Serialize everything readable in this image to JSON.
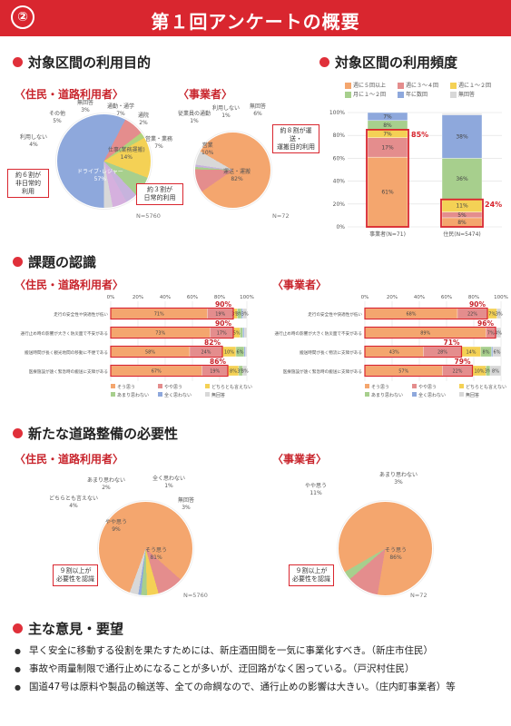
{
  "header": {
    "number": "②",
    "title": "第１回アンケートの概要"
  },
  "section_purpose": {
    "title": "対象区間の利用目的",
    "residents": {
      "subtitle": "〈住民・道路利用者〉",
      "n": "N=5760",
      "slices": [
        {
          "label": "ドライブ･レジャー",
          "pct": "57%",
          "value": 57,
          "color": "#8ea8dc"
        },
        {
          "label": "通勤・通学",
          "pct": "7%",
          "value": 7,
          "color": "#e48d8d"
        },
        {
          "label": "通院",
          "pct": "2%",
          "value": 2,
          "color": "#b2d27c"
        },
        {
          "label": "仕事(業務運搬)",
          "pct": "14%",
          "value": 14,
          "color": "#f4d155"
        },
        {
          "label": "営業・業務",
          "pct": "7%",
          "value": 7,
          "color": "#a7cf8d"
        },
        {
          "label": "利用しない",
          "pct": "4%",
          "value": 4,
          "color": "#c7b3dd"
        },
        {
          "label": "その他",
          "pct": "5%",
          "value": 5,
          "color": "#d5b0de"
        },
        {
          "label": "無回答",
          "pct": "3%",
          "value": 3,
          "color": "#d8d8d8"
        }
      ],
      "callout_a": "約６割が\n非日常的\n利用",
      "callout_b": "約３割が\n日常的利用"
    },
    "business": {
      "subtitle": "〈事業者〉",
      "n": "N=72",
      "slices": [
        {
          "label": "運送・運搬",
          "pct": "82%",
          "value": 82,
          "color": "#f4a66e"
        },
        {
          "label": "営業",
          "pct": "10%",
          "value": 10,
          "color": "#e48d8d"
        },
        {
          "label": "従業員の通勤",
          "pct": "1%",
          "value": 1,
          "color": "#a7cf8d"
        },
        {
          "label": "利用しない",
          "pct": "1%",
          "value": 1,
          "color": "#c7b3dd"
        },
        {
          "label": "無回答",
          "pct": "6%",
          "value": 6,
          "color": "#d8d8d8"
        }
      ],
      "callout": "約８割が運送・\n運搬目的利用"
    }
  },
  "section_frequency": {
    "title": "対象区間の利用頻度",
    "legend": [
      "週に５回以上",
      "週に３～４回",
      "週に１～２回",
      "月に１～２回",
      "年に数回",
      "無回答"
    ],
    "chart_data": {
      "type": "bar",
      "stacked": true,
      "categories": [
        "事業者(N=71)",
        "住民(N=5474)"
      ],
      "ylim": [
        0,
        100
      ],
      "yticks": [
        "0%",
        "20%",
        "40%",
        "60%",
        "80%",
        "100%"
      ],
      "series": [
        {
          "name": "週に５回以上",
          "values": [
            61,
            8
          ],
          "color": "#f4a66e"
        },
        {
          "name": "週に３～４回",
          "values": [
            17,
            5
          ],
          "color": "#e48d8d"
        },
        {
          "name": "週に１～２回",
          "values": [
            7,
            11
          ],
          "color": "#f4d155"
        },
        {
          "name": "月に１～２回",
          "values": [
            8,
            36
          ],
          "color": "#a7cf8d"
        },
        {
          "name": "年に数回",
          "values": [
            7,
            38
          ],
          "color": "#8ea8dc"
        },
        {
          "name": "無回答",
          "values": [
            0,
            1
          ],
          "color": "#d8d8d8"
        }
      ],
      "highlights": [
        "85%",
        "24%"
      ]
    }
  },
  "section_issue": {
    "title": "課題の認識",
    "axis": [
      "0%",
      "20%",
      "40%",
      "60%",
      "80%",
      "100%"
    ],
    "residents": {
      "subtitle": "〈住民・道路利用者〉",
      "rows": [
        {
          "label": "走行の安全性や快適性が低い",
          "total": "90%",
          "values": [
            71,
            19,
            3,
            3,
            1,
            3
          ],
          "texts": [
            "71%",
            "19%",
            "3%",
            "3%",
            "1%",
            "3%"
          ]
        },
        {
          "label": "通行止め時の影響が大きく防災面で不安がある",
          "total": "90%",
          "values": [
            73,
            17,
            5,
            2,
            1,
            2
          ],
          "texts": [
            "73%",
            "17%",
            "5%",
            "2%",
            "1%",
            "2%"
          ]
        },
        {
          "label": "搬送時間が長く観光地間の移動に不便である",
          "total": "82%",
          "values": [
            58,
            24,
            10,
            6,
            1,
            1
          ],
          "texts": [
            "58%",
            "24%",
            "10%",
            "6%",
            "1%",
            "1%"
          ]
        },
        {
          "label": "医療施設が遠く緊急時の搬送に支障がある",
          "total": "86%",
          "values": [
            67,
            19,
            8,
            3,
            0,
            3
          ],
          "texts": [
            "67%",
            "19%",
            "8%",
            "3%",
            "",
            "3%"
          ]
        }
      ],
      "legend": [
        "そう思う",
        "やや思う",
        "どちらとも言えない",
        "あまり思わない",
        "全く思わない",
        "無回答"
      ]
    },
    "business": {
      "subtitle": "〈事業者〉",
      "rows": [
        {
          "label": "走行の安全性や快適性が低い",
          "total": "90%",
          "values": [
            68,
            22,
            7,
            0,
            0,
            3
          ],
          "texts": [
            "68%",
            "22%",
            "7%",
            "",
            "",
            "3%"
          ]
        },
        {
          "label": "通行止め時の影響が大きく防災面で不安がある",
          "total": "96%",
          "values": [
            89,
            7,
            0,
            0,
            0,
            4
          ],
          "texts": [
            "89%",
            "7%",
            "",
            "",
            "",
            "4%"
          ]
        },
        {
          "label": "搬送時間が長く物流に支障がある",
          "total": "71%",
          "values": [
            43,
            28,
            14,
            8,
            1,
            6
          ],
          "texts": [
            "43%",
            "28%",
            "14%",
            "8%",
            "1%",
            "6%"
          ]
        },
        {
          "label": "医療施設が遠く緊急時の搬送に支障がある",
          "total": "79%",
          "values": [
            57,
            22,
            10,
            3,
            0,
            8
          ],
          "texts": [
            "57%",
            "22%",
            "10%",
            "3%",
            "",
            "8%"
          ]
        }
      ],
      "legend": [
        "そう思う",
        "やや思う",
        "どちらとも言えない",
        "あまり思わない",
        "全く思わない",
        "無回答"
      ]
    },
    "colors": [
      "#f4a66e",
      "#e48d8d",
      "#f4d155",
      "#a7cf8d",
      "#8ea8dc",
      "#d8d8d8"
    ]
  },
  "section_need": {
    "title": "新たな道路整備の必要性",
    "residents": {
      "subtitle": "〈住民・道路利用者〉",
      "n": "N=5760",
      "slices": [
        {
          "label": "そう思う",
          "pct": "81%",
          "value": 81,
          "color": "#f4a66e"
        },
        {
          "label": "やや思う",
          "pct": "9%",
          "value": 9,
          "color": "#e48d8d"
        },
        {
          "label": "どちらとも言えない",
          "pct": "4%",
          "value": 4,
          "color": "#f4d155"
        },
        {
          "label": "あまり思わない",
          "pct": "2%",
          "value": 2,
          "color": "#a7cf8d"
        },
        {
          "label": "全く思わない",
          "pct": "1%",
          "value": 1,
          "color": "#8ea8dc"
        },
        {
          "label": "無回答",
          "pct": "3%",
          "value": 3,
          "color": "#d8d8d8"
        }
      ],
      "callout": "９割以上が\n必要性を認識"
    },
    "business": {
      "subtitle": "〈事業者〉",
      "n": "N=72",
      "slices": [
        {
          "label": "そう思う",
          "pct": "86%",
          "value": 86,
          "color": "#f4a66e"
        },
        {
          "label": "やや思う",
          "pct": "11%",
          "value": 11,
          "color": "#e48d8d"
        },
        {
          "label": "あまり思わない",
          "pct": "3%",
          "value": 3,
          "color": "#a7cf8d"
        }
      ],
      "callout": "９割以上が\n必要性を認識"
    }
  },
  "section_opinions": {
    "title": "主な意見・要望",
    "items": [
      "早く安全に移動する役割を果たすためには、新庄酒田間を一気に事業化すべき。（新庄市住民）",
      "事故や雨量制限で通行止めになることが多いが、迂回路がなく困っている。（戸沢村住民）",
      "国道47号は原料や製品の輸送等、全ての命綱なので、通行止めの影響は大きい。（庄内町事業者）等"
    ]
  }
}
